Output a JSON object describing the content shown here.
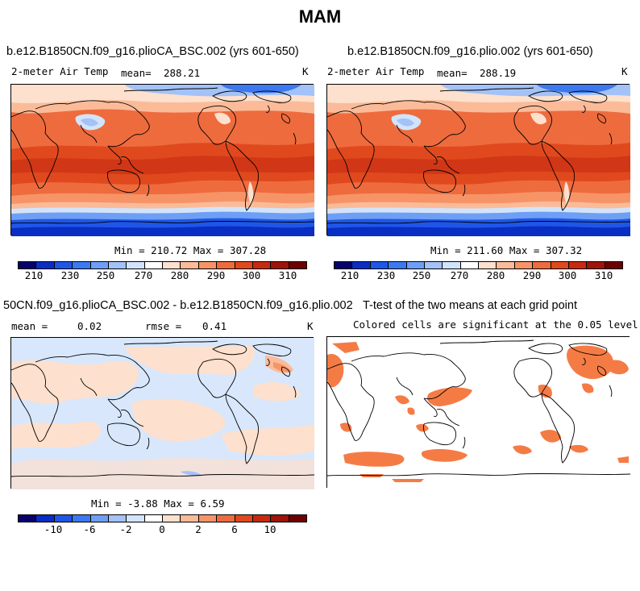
{
  "figure": {
    "title": "MAM"
  },
  "panels": {
    "p1": {
      "title": "b.e12.B1850CN.f09_g16.plioCA_BSC.002 (yrs 601-650)",
      "variable": "2-meter Air Temp",
      "mean_label": "mean=",
      "mean_value": "288.21",
      "units": "K",
      "minmax": "Min = 210.72 Max = 307.28",
      "colorbar_ticks": [
        "210",
        "230",
        "250",
        "270",
        "280",
        "290",
        "300",
        "310"
      ]
    },
    "p2": {
      "title": "b.e12.B1850CN.f09_g16.plio.002 (yrs 601-650)",
      "variable": "2-meter Air Temp",
      "mean_label": "mean=",
      "mean_value": "288.19",
      "units": "K",
      "minmax": "Min = 211.60 Max = 307.32",
      "colorbar_ticks": [
        "210",
        "230",
        "250",
        "270",
        "280",
        "290",
        "300",
        "310"
      ]
    },
    "p3": {
      "title": "50CN.f09_g16.plioCA_BSC.002 - b.e12.B1850CN.f09_g16.plio.002",
      "mean_label": "mean =",
      "mean_value": "0.02",
      "rmse_label": "rmse =",
      "rmse_value": "0.41",
      "units": "K",
      "minmax": "Min =  -3.88 Max =   6.59",
      "colorbar_ticks": [
        "-10",
        "-6",
        "-2",
        "0",
        "2",
        "6",
        "10"
      ]
    },
    "p4": {
      "title": "T-test of the two means at each grid point",
      "subtitle": "Colored cells are significant at the 0.05 level"
    }
  },
  "colors": {
    "temp_scale": [
      "#08006b",
      "#0a2dc4",
      "#1e56e8",
      "#3c78f0",
      "#6e9ff5",
      "#a3c2f7",
      "#d2e4fb",
      "#ffffff",
      "#fde0cd",
      "#fbbb99",
      "#f79467",
      "#ee6b3e",
      "#e0491e",
      "#c62b10",
      "#9e1408",
      "#6e0000"
    ],
    "diff_scale": [
      "#08006b",
      "#0a2dc4",
      "#1e56e8",
      "#3c78f0",
      "#6e9ff5",
      "#a3c2f7",
      "#d2e4fb",
      "#ffffff",
      "#fde0cd",
      "#fbbb99",
      "#f79467",
      "#ee6b3e",
      "#e0491e",
      "#c62b10",
      "#9e1408",
      "#6e0000"
    ],
    "significant": "#f57b45"
  }
}
